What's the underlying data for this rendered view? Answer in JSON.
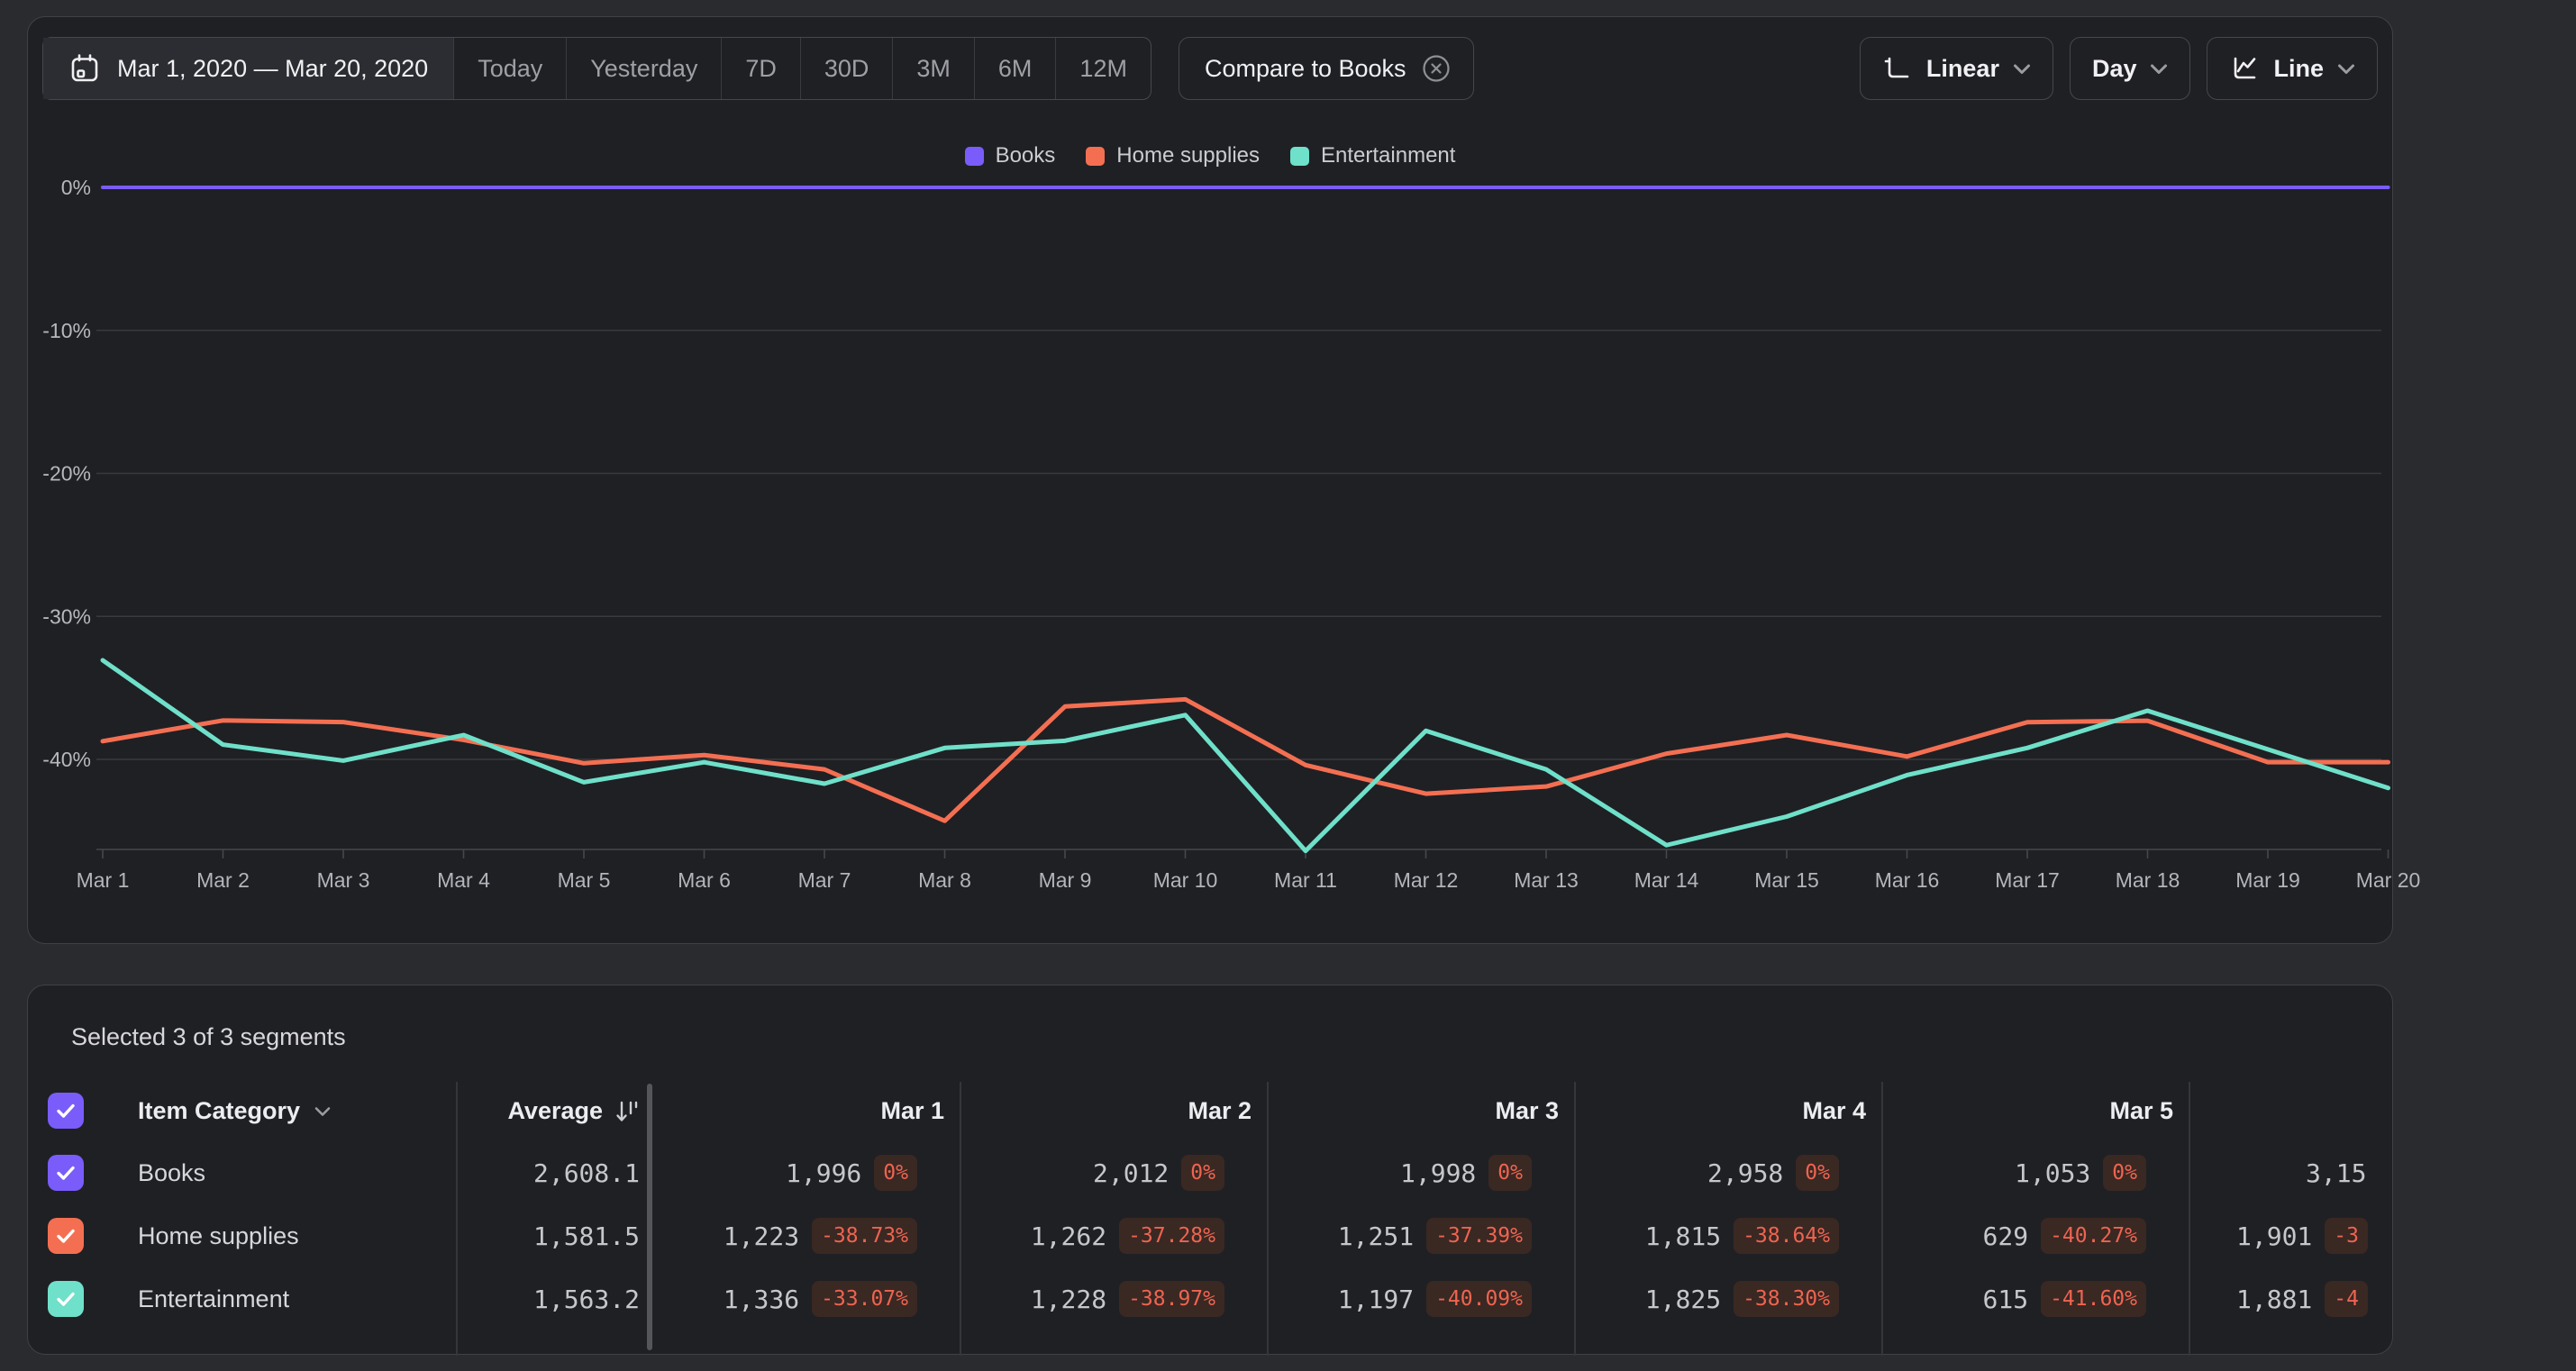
{
  "toolbar": {
    "date_range": "Mar 1, 2020 — Mar 20, 2020",
    "presets": [
      "Today",
      "Yesterday",
      "7D",
      "30D",
      "3M",
      "6M",
      "12M"
    ],
    "compare_chip": "Compare to Books",
    "scale_dropdown": "Linear",
    "granularity_dropdown": "Day",
    "chart_type_dropdown": "Line"
  },
  "colors": {
    "books": "#7a5cfa",
    "home_supplies": "#f46f52",
    "entertainment": "#6fe0c9",
    "badge_text": "#ee6450",
    "badge_bg": "#3a2823"
  },
  "chart_data": {
    "type": "line",
    "title": "",
    "x": [
      "Mar 1",
      "Mar 2",
      "Mar 3",
      "Mar 4",
      "Mar 5",
      "Mar 6",
      "Mar 7",
      "Mar 8",
      "Mar 9",
      "Mar 10",
      "Mar 11",
      "Mar 12",
      "Mar 13",
      "Mar 14",
      "Mar 15",
      "Mar 16",
      "Mar 17",
      "Mar 18",
      "Mar 19",
      "Mar 20"
    ],
    "y_tick_labels": [
      "0%",
      "-10%",
      "-20%",
      "-30%",
      "-40%"
    ],
    "y_ticks": [
      0,
      -10,
      -20,
      -30,
      -40
    ],
    "ylim": [
      -46.5,
      0
    ],
    "grid": true,
    "legend_position": "top",
    "series": [
      {
        "name": "Books",
        "color": "#7a5cfa",
        "values": [
          0,
          0,
          0,
          0,
          0,
          0,
          0,
          0,
          0,
          0,
          0,
          0,
          0,
          0,
          0,
          0,
          0,
          0,
          0,
          0
        ]
      },
      {
        "name": "Home supplies",
        "color": "#f46f52",
        "values": [
          -38.73,
          -37.28,
          -37.39,
          -38.64,
          -40.27,
          -39.7,
          -40.7,
          -44.3,
          -36.3,
          -35.8,
          -40.4,
          -42.4,
          -41.9,
          -39.6,
          -38.3,
          -39.8,
          -37.4,
          -37.3,
          -40.2,
          -40.2
        ]
      },
      {
        "name": "Entertainment",
        "color": "#6fe0c9",
        "values": [
          -33.07,
          -38.97,
          -40.09,
          -38.3,
          -41.6,
          -40.2,
          -41.7,
          -39.2,
          -38.7,
          -36.9,
          -46.4,
          -38.0,
          -40.7,
          -46.0,
          -44.0,
          -41.1,
          -39.2,
          -36.6,
          -39.3,
          -42.0
        ]
      }
    ]
  },
  "table": {
    "selected_text": "Selected 3 of 3 segments",
    "category_header": "Item Category",
    "average_header": "Average",
    "day_headers": [
      "Mar 1",
      "Mar 2",
      "Mar 3",
      "Mar 4",
      "Mar 5"
    ],
    "rows": [
      {
        "label": "Books",
        "color": "#7a5cfa",
        "average": "2,608.1",
        "cells": [
          {
            "value": "1,996",
            "change": "0%"
          },
          {
            "value": "2,012",
            "change": "0%"
          },
          {
            "value": "1,998",
            "change": "0%"
          },
          {
            "value": "2,958",
            "change": "0%"
          },
          {
            "value": "1,053",
            "change": "0%"
          }
        ],
        "partial_cell": {
          "value": "3,15",
          "change": null
        }
      },
      {
        "label": "Home supplies",
        "color": "#f46f52",
        "average": "1,581.5",
        "cells": [
          {
            "value": "1,223",
            "change": "-38.73%"
          },
          {
            "value": "1,262",
            "change": "-37.28%"
          },
          {
            "value": "1,251",
            "change": "-37.39%"
          },
          {
            "value": "1,815",
            "change": "-38.64%"
          },
          {
            "value": "629",
            "change": "-40.27%"
          }
        ],
        "partial_cell": {
          "value": "1,901",
          "change": "-3"
        }
      },
      {
        "label": "Entertainment",
        "color": "#6fe0c9",
        "average": "1,563.2",
        "cells": [
          {
            "value": "1,336",
            "change": "-33.07%"
          },
          {
            "value": "1,228",
            "change": "-38.97%"
          },
          {
            "value": "1,197",
            "change": "-40.09%"
          },
          {
            "value": "1,825",
            "change": "-38.30%"
          },
          {
            "value": "615",
            "change": "-41.60%"
          }
        ],
        "partial_cell": {
          "value": "1,881",
          "change": "-4"
        }
      }
    ]
  }
}
